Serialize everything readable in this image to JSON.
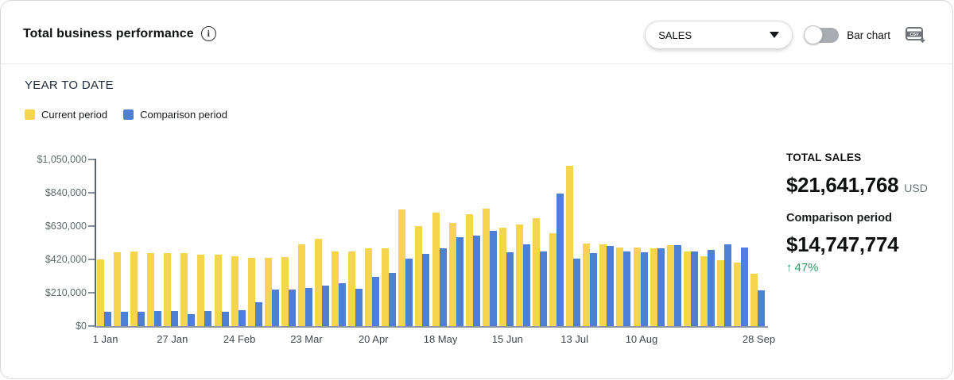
{
  "header": {
    "title": "Total business performance",
    "info_icon": "info-icon",
    "info_glyph": "i",
    "dropdown": {
      "value": "SALES",
      "caret_icon": "caret-down-icon"
    },
    "toggle": {
      "label": "Bar chart",
      "state": "off"
    },
    "export_icon": "csv-download-icon",
    "export_icon_text": "CSV"
  },
  "section": {
    "title": "YEAR TO DATE"
  },
  "chart_data": {
    "type": "bar",
    "title": "YEAR TO DATE",
    "grid": false,
    "legend_position": "top-left",
    "ymax": 1050000,
    "ylim": [
      0,
      1050000
    ],
    "y_ticks": [
      "$1,050,000",
      "$840,000",
      "$630,000",
      "$420,000",
      "$210,000",
      "$0"
    ],
    "x_tick_labels": [
      {
        "index": 0,
        "label": "1 Jan"
      },
      {
        "index": 4,
        "label": "27 Jan"
      },
      {
        "index": 8,
        "label": "24 Feb"
      },
      {
        "index": 12,
        "label": "23 Mar"
      },
      {
        "index": 16,
        "label": "20 Apr"
      },
      {
        "index": 20,
        "label": "18 May"
      },
      {
        "index": 24,
        "label": "15 Jun"
      },
      {
        "index": 28,
        "label": "13 Jul"
      },
      {
        "index": 32,
        "label": "10 Aug"
      },
      {
        "index": 39,
        "label": "28 Sep"
      }
    ],
    "series": [
      {
        "key": "current",
        "name": "Current period",
        "color": "#F6D44D",
        "values": [
          420000,
          465000,
          472000,
          458000,
          460000,
          462000,
          452000,
          448000,
          440000,
          432000,
          428000,
          436000,
          517000,
          550000,
          470000,
          470000,
          490000,
          492000,
          737000,
          628000,
          717000,
          648000,
          703000,
          742000,
          620000,
          640000,
          680000,
          587000,
          1008000,
          520000,
          513000,
          497000,
          495000,
          488000,
          512000,
          470000,
          441000,
          413000,
          400000,
          330000
        ]
      },
      {
        "key": "comparison",
        "name": "Comparison period",
        "color": "#4E7FD4",
        "values": [
          88000,
          92000,
          90000,
          94000,
          96000,
          74000,
          94000,
          90000,
          98000,
          150000,
          230000,
          232000,
          242000,
          253000,
          270000,
          235000,
          308000,
          333000,
          425000,
          453000,
          492000,
          562000,
          570000,
          600000,
          467000,
          517000,
          472000,
          837000,
          425000,
          462000,
          503000,
          470000,
          467000,
          490000,
          508000,
          468000,
          480000,
          516000,
          495000,
          225000
        ]
      }
    ]
  },
  "summary": {
    "total_label": "TOTAL SALES",
    "total_value": "$21,641,768",
    "currency": "USD",
    "comparison_label": "Comparison period",
    "comparison_value": "$14,747,774",
    "change_arrow": "↑",
    "change_value": "47%",
    "change_color": "#2E9B67"
  }
}
